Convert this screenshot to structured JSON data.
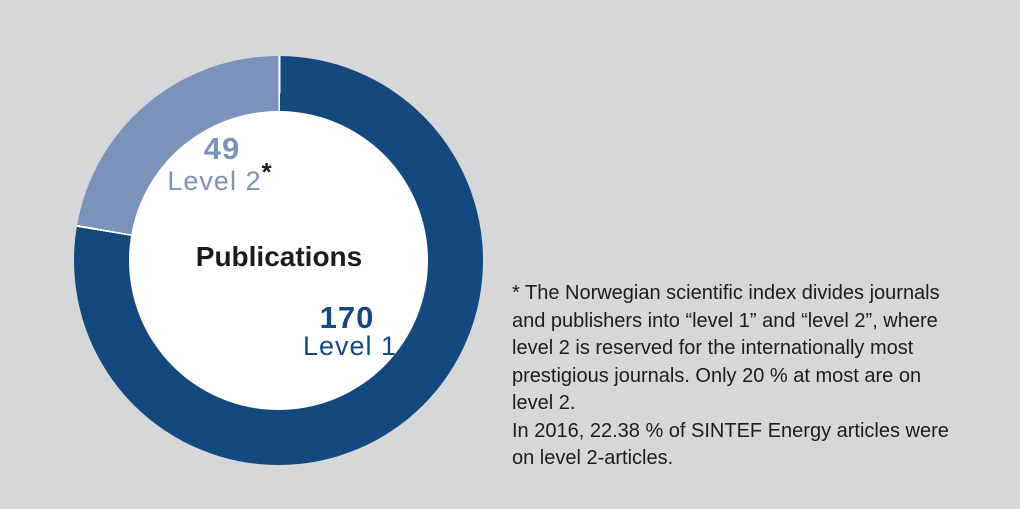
{
  "background_color": "#d5d7d9",
  "chart_data": {
    "type": "pie",
    "subtype": "donut",
    "title": "Publications",
    "center_label": "Publications",
    "categories": [
      "Level 1",
      "Level 2"
    ],
    "values": [
      170,
      49
    ],
    "total": 219,
    "start_angle_deg": 0,
    "direction": "clockwise",
    "separator_color": "#ffffff",
    "separator_deg": 0.6,
    "segments": [
      {
        "label": "Level 1",
        "value": 170,
        "color": "#14497f"
      },
      {
        "label": "Level 2",
        "value": 49,
        "color": "#7b92ba",
        "footnote_marker": "*"
      }
    ]
  },
  "footnote": {
    "text": "* The Norwegian scientific index divides journals\nand publishers into “level 1” and “level 2”, where\nlevel 2 is reserved for the internationally most\nprestigious journals. Only 20 % at most are on\nlevel 2.\nIn 2016, 22.38 % of SINTEF Energy articles were\non level 2-articles.",
    "text_color": "#1d1d1d"
  }
}
